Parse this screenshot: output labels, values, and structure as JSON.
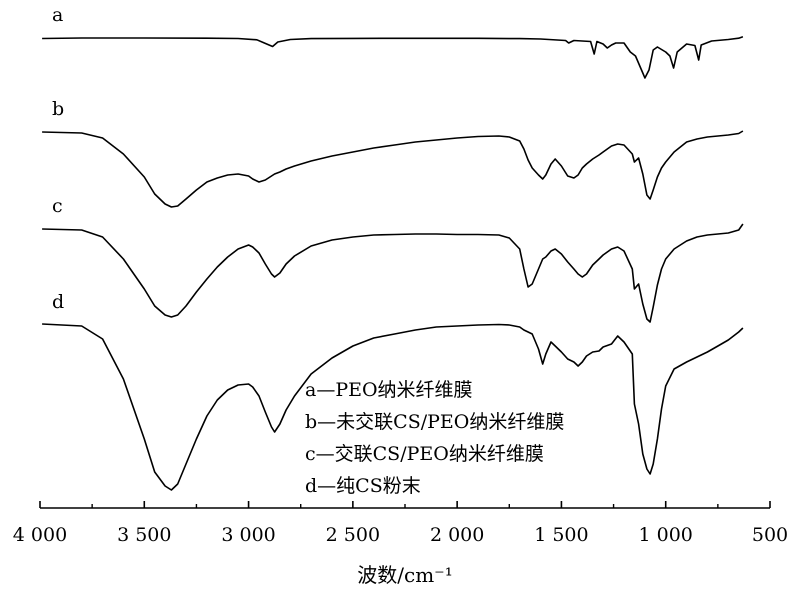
{
  "chart_data": {
    "type": "line",
    "xlabel": "波数/cm⁻¹",
    "xlim": [
      4000,
      500
    ],
    "x_reversed": true,
    "xticks": [
      4000,
      3500,
      3000,
      2500,
      2000,
      1500,
      1000,
      500
    ],
    "xtick_labels": [
      "4 000",
      "3 500",
      "3 000",
      "2 500",
      "2 000",
      "1 500",
      "1 000",
      "500"
    ],
    "y_axis_shown": false,
    "grid": false,
    "legend": {
      "placement": "bottom-center",
      "entries": [
        "a—PEO纳米纤维膜",
        "b—未交联CS/PEO纳米纤维膜",
        "c—交联CS/PEO纳米纤维膜",
        "d—纯CS粉末"
      ]
    },
    "series": [
      {
        "label": "a",
        "x": [
          3990,
          3800,
          3500,
          3200,
          3050,
          2960,
          2930,
          2885,
          2860,
          2800,
          2700,
          2500,
          2200,
          1900,
          1700,
          1600,
          1480,
          1465,
          1440,
          1360,
          1343,
          1330,
          1300,
          1280,
          1260,
          1240,
          1200,
          1170,
          1145,
          1110,
          1100,
          1080,
          1060,
          1040,
          1000,
          980,
          962,
          945,
          900,
          860,
          842,
          830,
          780,
          700,
          650,
          630
        ],
        "y": [
          0.5,
          0.0,
          0.0,
          0.2,
          0.5,
          1.8,
          4.5,
          8.5,
          4.0,
          1.5,
          0.6,
          0.4,
          0.3,
          0.3,
          0.6,
          1.0,
          2.5,
          5.0,
          2.5,
          3.5,
          16.0,
          3.5,
          6.0,
          10.0,
          7.0,
          5.0,
          5.0,
          14.0,
          18.0,
          35.0,
          40.0,
          32.0,
          12.0,
          9.0,
          14.0,
          18.0,
          30.0,
          14.0,
          6.0,
          7.5,
          22.0,
          7.0,
          3.0,
          1.5,
          0.2,
          -1.2
        ]
      },
      {
        "label": "b",
        "x": [
          3990,
          3800,
          3700,
          3600,
          3500,
          3450,
          3400,
          3370,
          3340,
          3300,
          3250,
          3200,
          3150,
          3100,
          3050,
          3000,
          2980,
          2950,
          2920,
          2890,
          2875,
          2850,
          2820,
          2780,
          2700,
          2600,
          2500,
          2400,
          2300,
          2200,
          2100,
          2000,
          1900,
          1800,
          1750,
          1700,
          1680,
          1660,
          1640,
          1610,
          1590,
          1575,
          1550,
          1530,
          1500,
          1470,
          1440,
          1420,
          1400,
          1380,
          1350,
          1320,
          1300,
          1260,
          1230,
          1200,
          1160,
          1150,
          1130,
          1110,
          1090,
          1075,
          1060,
          1040,
          1020,
          1000,
          960,
          900,
          850,
          800,
          750,
          700,
          650,
          630
        ],
        "y": [
          0.0,
          1.0,
          6.0,
          22.0,
          45.0,
          62.0,
          72.0,
          75.0,
          74.0,
          67.0,
          58.0,
          50.0,
          46.0,
          43.0,
          42.0,
          44.0,
          47.0,
          50.0,
          48.0,
          44.0,
          42.0,
          40.0,
          37.0,
          34.0,
          29.0,
          24.0,
          20.0,
          16.0,
          13.0,
          10.0,
          8.0,
          6.0,
          4.5,
          4.0,
          5.0,
          9.0,
          17.0,
          28.0,
          36.0,
          43.0,
          47.0,
          43.0,
          32.0,
          27.0,
          34.0,
          44.0,
          46.0,
          43.0,
          36.0,
          32.0,
          27.0,
          23.0,
          20.0,
          14.0,
          12.0,
          13.0,
          22.0,
          30.0,
          26.0,
          42.0,
          63.0,
          67.0,
          58.0,
          45.0,
          36.0,
          30.0,
          20.0,
          10.0,
          7.0,
          5.0,
          4.0,
          3.0,
          1.5,
          -1.0
        ]
      },
      {
        "label": "c",
        "x": [
          3990,
          3800,
          3700,
          3600,
          3500,
          3450,
          3400,
          3370,
          3340,
          3300,
          3250,
          3200,
          3150,
          3100,
          3050,
          3000,
          2980,
          2950,
          2920,
          2890,
          2875,
          2850,
          2820,
          2780,
          2700,
          2600,
          2500,
          2400,
          2300,
          2200,
          2100,
          2000,
          1900,
          1800,
          1750,
          1700,
          1680,
          1660,
          1640,
          1610,
          1590,
          1575,
          1550,
          1530,
          1500,
          1470,
          1440,
          1420,
          1400,
          1380,
          1350,
          1320,
          1300,
          1260,
          1230,
          1200,
          1160,
          1150,
          1130,
          1110,
          1090,
          1075,
          1060,
          1040,
          1020,
          1000,
          960,
          900,
          850,
          800,
          750,
          700,
          650,
          630
        ],
        "y": [
          0.0,
          1.0,
          8.0,
          30.0,
          60.0,
          77.0,
          86.0,
          88.0,
          86.0,
          77.0,
          63.0,
          50.0,
          38.0,
          28.0,
          20.0,
          16.0,
          18.0,
          24.0,
          35.0,
          45.0,
          48.0,
          44.0,
          35.0,
          27.0,
          17.0,
          11.0,
          8.0,
          6.0,
          5.5,
          5.0,
          5.0,
          5.5,
          5.5,
          6.0,
          9.0,
          20.0,
          40.0,
          58.0,
          55.0,
          40.0,
          30.0,
          28.0,
          22.0,
          20.0,
          25.0,
          33.0,
          40.0,
          45.0,
          48.0,
          45.0,
          36.0,
          30.0,
          26.0,
          20.0,
          18.0,
          22.0,
          40.0,
          60.0,
          55.0,
          75.0,
          90.0,
          93.0,
          78.0,
          56.0,
          40.0,
          30.0,
          20.0,
          12.0,
          8.0,
          6.0,
          5.0,
          4.0,
          1.0,
          -5.0
        ]
      },
      {
        "label": "d",
        "x": [
          3990,
          3800,
          3700,
          3600,
          3500,
          3450,
          3400,
          3370,
          3340,
          3300,
          3250,
          3200,
          3150,
          3100,
          3050,
          3000,
          2980,
          2950,
          2920,
          2890,
          2875,
          2850,
          2820,
          2780,
          2700,
          2600,
          2500,
          2400,
          2300,
          2200,
          2100,
          2000,
          1900,
          1800,
          1750,
          1700,
          1680,
          1660,
          1640,
          1610,
          1590,
          1575,
          1550,
          1530,
          1500,
          1470,
          1440,
          1420,
          1400,
          1380,
          1350,
          1320,
          1300,
          1260,
          1230,
          1200,
          1160,
          1150,
          1130,
          1110,
          1090,
          1075,
          1060,
          1040,
          1020,
          1000,
          960,
          900,
          850,
          800,
          750,
          700,
          650,
          630
        ],
        "y": [
          0.0,
          2.0,
          15.0,
          55.0,
          115.0,
          148.0,
          162.0,
          166.0,
          160.0,
          140.0,
          115.0,
          92.0,
          76.0,
          66.0,
          61.0,
          60.0,
          63.0,
          72.0,
          88.0,
          103.0,
          108.0,
          100.0,
          86.0,
          72.0,
          50.0,
          34.0,
          22.0,
          14.0,
          10.0,
          6.0,
          3.0,
          2.0,
          1.0,
          0.5,
          1.0,
          3.0,
          6.0,
          8.0,
          10.0,
          25.0,
          40.0,
          30.0,
          18.0,
          22.0,
          28.0,
          35.0,
          38.0,
          42.0,
          38.0,
          32.0,
          28.0,
          27.0,
          23.0,
          20.0,
          12.0,
          18.0,
          30.0,
          80.0,
          100.0,
          130.0,
          145.0,
          150.0,
          140.0,
          115.0,
          85.0,
          62.0,
          45.0,
          38.0,
          33.0,
          28.0,
          22.0,
          16.0,
          8.0,
          4.0
        ]
      }
    ]
  }
}
